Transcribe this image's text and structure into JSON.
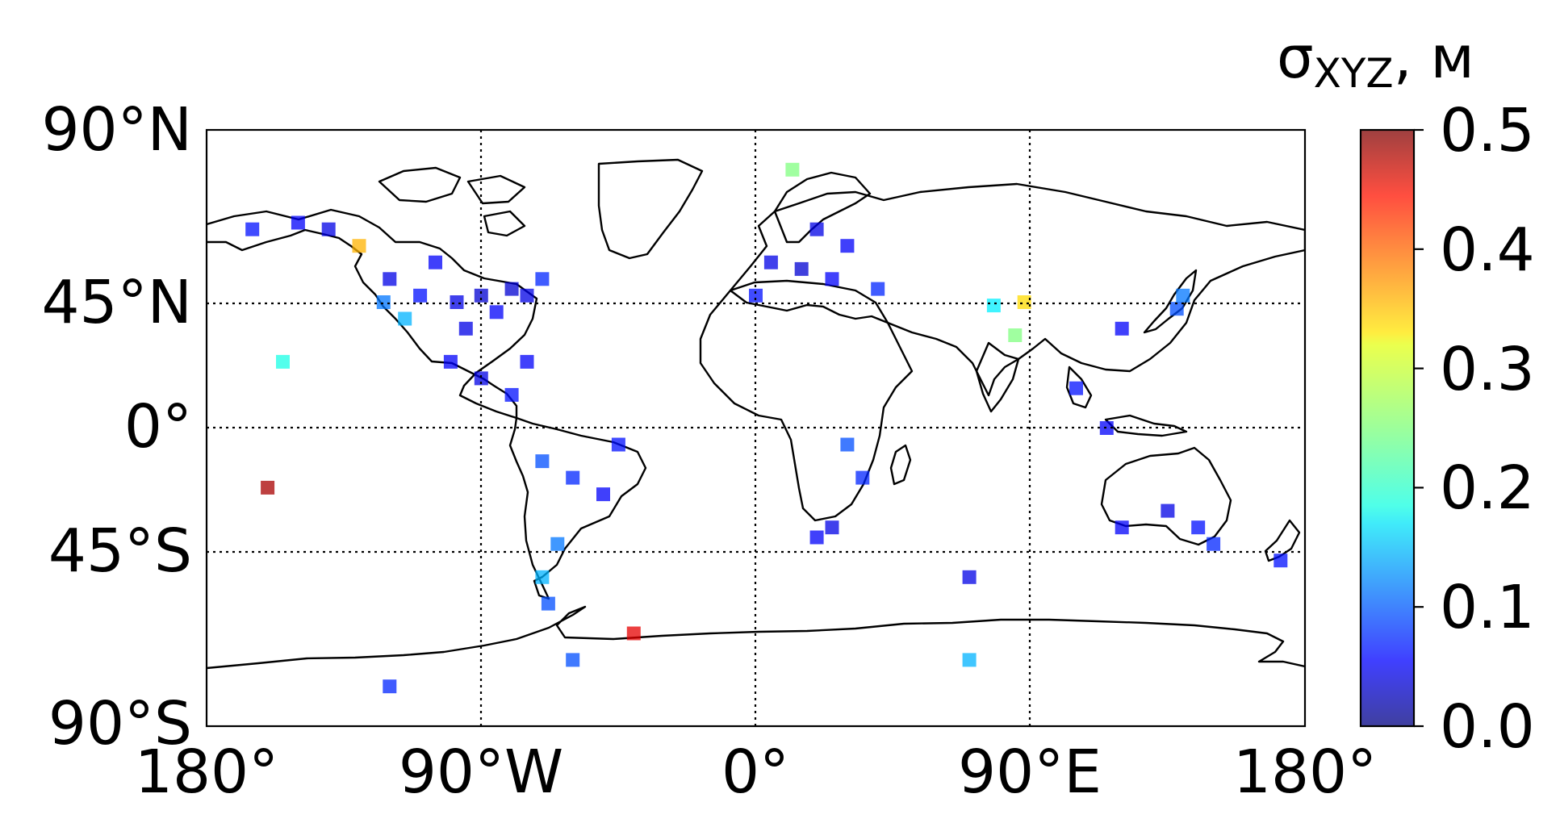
{
  "map": {
    "lat_ticks": [
      "90°N",
      "45°N",
      "0°",
      "45°S",
      "90°S"
    ],
    "lon_ticks": [
      "180°",
      "90°W",
      "0°",
      "90°E",
      "180°"
    ],
    "lat_values": [
      90,
      45,
      0,
      -45,
      -90
    ],
    "lon_values": [
      -180,
      -90,
      0,
      90,
      180
    ],
    "grid": "dotted at 45° latitude and 90° longitude"
  },
  "colorbar": {
    "title_main": "σ",
    "title_sub": "XYZ",
    "title_unit": ", м",
    "ticks": [
      "0.0",
      "0.1",
      "0.2",
      "0.3",
      "0.4",
      "0.5"
    ],
    "tick_values": [
      0,
      0.1,
      0.2,
      0.3,
      0.4,
      0.5
    ],
    "colormap": "jet",
    "range": [
      0,
      0.5
    ]
  },
  "chart_data": {
    "type": "scatter",
    "projection": "plate-carree",
    "xlim": [
      -180,
      180
    ],
    "ylim": [
      -90,
      90
    ],
    "value_label": "σXYZ, м",
    "points": [
      {
        "lon": -98,
        "lat": 38,
        "v": 0.05
      },
      {
        "lon": -90,
        "lat": 40,
        "v": 0.04
      },
      {
        "lon": -85,
        "lat": 35,
        "v": 0.06
      },
      {
        "lon": -110,
        "lat": 40,
        "v": 0.07
      },
      {
        "lon": -120,
        "lat": 45,
        "v": 0.05
      },
      {
        "lon": -122,
        "lat": 38,
        "v": 0.12
      },
      {
        "lon": -115,
        "lat": 33,
        "v": 0.15
      },
      {
        "lon": -105,
        "lat": 50,
        "v": 0.06
      },
      {
        "lon": -95,
        "lat": 30,
        "v": 0.05
      },
      {
        "lon": -80,
        "lat": 42,
        "v": 0.04
      },
      {
        "lon": -75,
        "lat": 40,
        "v": 0.05
      },
      {
        "lon": -70,
        "lat": 45,
        "v": 0.08
      },
      {
        "lon": -100,
        "lat": 20,
        "v": 0.06
      },
      {
        "lon": -90,
        "lat": 15,
        "v": 0.05
      },
      {
        "lon": -80,
        "lat": 10,
        "v": 0.07
      },
      {
        "lon": -75,
        "lat": 20,
        "v": 0.06
      },
      {
        "lon": -150,
        "lat": 62,
        "v": 0.06
      },
      {
        "lon": -140,
        "lat": 60,
        "v": 0.05
      },
      {
        "lon": -165,
        "lat": 60,
        "v": 0.07
      },
      {
        "lon": -130,
        "lat": 55,
        "v": 0.35
      },
      {
        "lon": -155,
        "lat": 20,
        "v": 0.2
      },
      {
        "lon": -70,
        "lat": -10,
        "v": 0.1
      },
      {
        "lon": -60,
        "lat": -15,
        "v": 0.08
      },
      {
        "lon": -50,
        "lat": -20,
        "v": 0.06
      },
      {
        "lon": -65,
        "lat": -35,
        "v": 0.12
      },
      {
        "lon": -70,
        "lat": -45,
        "v": 0.15
      },
      {
        "lon": -68,
        "lat": -53,
        "v": 0.1
      },
      {
        "lon": -45,
        "lat": -5,
        "v": 0.07
      },
      {
        "lon": 5,
        "lat": 50,
        "v": 0.05
      },
      {
        "lon": 15,
        "lat": 48,
        "v": 0.04
      },
      {
        "lon": 25,
        "lat": 45,
        "v": 0.06
      },
      {
        "lon": 0,
        "lat": 40,
        "v": 0.07
      },
      {
        "lon": 20,
        "lat": 60,
        "v": 0.05
      },
      {
        "lon": 30,
        "lat": 55,
        "v": 0.06
      },
      {
        "lon": 12,
        "lat": 78,
        "v": 0.25
      },
      {
        "lon": 40,
        "lat": 42,
        "v": 0.08
      },
      {
        "lon": 30,
        "lat": -5,
        "v": 0.1
      },
      {
        "lon": 35,
        "lat": -15,
        "v": 0.08
      },
      {
        "lon": 25,
        "lat": -30,
        "v": 0.05
      },
      {
        "lon": 20,
        "lat": -33,
        "v": 0.06
      },
      {
        "lon": 85,
        "lat": 28,
        "v": 0.25
      },
      {
        "lon": 88,
        "lat": 38,
        "v": 0.33
      },
      {
        "lon": 78,
        "lat": 37,
        "v": 0.18
      },
      {
        "lon": 120,
        "lat": 30,
        "v": 0.06
      },
      {
        "lon": 138,
        "lat": 36,
        "v": 0.1
      },
      {
        "lon": 140,
        "lat": 40,
        "v": 0.12
      },
      {
        "lon": 105,
        "lat": 12,
        "v": 0.07
      },
      {
        "lon": 115,
        "lat": 0,
        "v": 0.06
      },
      {
        "lon": 135,
        "lat": -25,
        "v": 0.05
      },
      {
        "lon": 145,
        "lat": -30,
        "v": 0.07
      },
      {
        "lon": 120,
        "lat": -30,
        "v": 0.06
      },
      {
        "lon": 150,
        "lat": -35,
        "v": 0.08
      },
      {
        "lon": 172,
        "lat": -40,
        "v": 0.07
      },
      {
        "lon": -40,
        "lat": -62,
        "v": 0.45
      },
      {
        "lon": -160,
        "lat": -18,
        "v": 0.48
      },
      {
        "lon": 70,
        "lat": -45,
        "v": 0.05
      },
      {
        "lon": 70,
        "lat": -70,
        "v": 0.15
      },
      {
        "lon": -120,
        "lat": -78,
        "v": 0.08
      },
      {
        "lon": -60,
        "lat": -70,
        "v": 0.1
      }
    ]
  }
}
